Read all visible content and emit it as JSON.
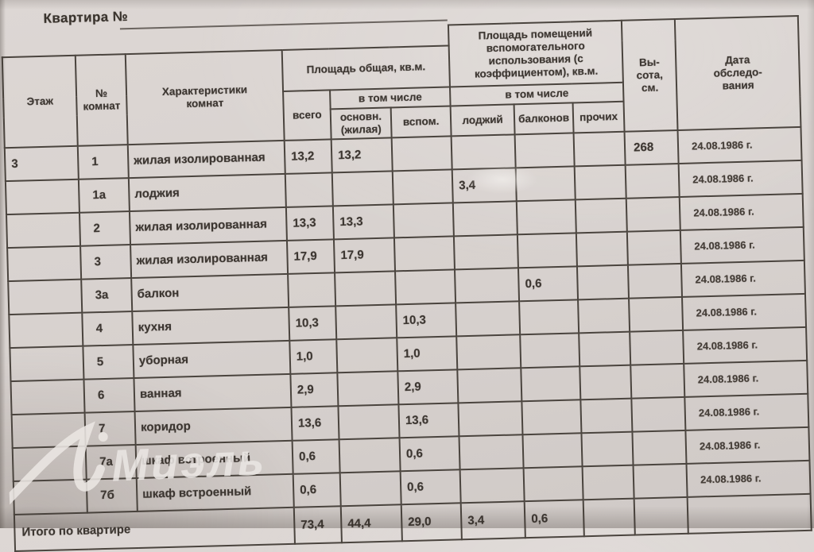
{
  "page_title": "Квартира №",
  "watermark": {
    "text": "Миэль"
  },
  "colors": {
    "paper": "#d7d1ce",
    "table_line": "#4a443e",
    "ink": "#3c3631",
    "watermark": "#eae6e3"
  },
  "table": {
    "headers": {
      "floor": "Этаж",
      "room_no": "№\nкомнат",
      "characteristics": "Характеристики\nкомнат",
      "total_group": "Площадь общая, кв.м.",
      "aux_group": "Площадь помещений\nвспомогательного\nиспользования (с\nкоэффициентом), кв.м.",
      "total": "всего",
      "including": "в том числе",
      "including2": "в том числе",
      "main_living": "основн.\n(жилая)",
      "aux": "вспом.",
      "loggias": "лоджий",
      "balconies": "балконов",
      "other": "прочих",
      "height": "Вы-\nсота,\nсм.",
      "survey_date": "Дата\nобследо-\nвания"
    },
    "rows": [
      {
        "floor": "3",
        "no": "1",
        "type": "жилая изолированная",
        "total": "13,2",
        "main": "13,2",
        "height": "268",
        "date": "24.08.1986 г."
      },
      {
        "no": "1а",
        "type": "лоджия",
        "loggia": "3,4",
        "date": "24.08.1986 г."
      },
      {
        "no": "2",
        "type": "жилая изолированная",
        "total": "13,3",
        "main": "13,3",
        "date": "24.08.1986 г."
      },
      {
        "no": "3",
        "type": "жилая изолированная",
        "total": "17,9",
        "main": "17,9",
        "date": "24.08.1986 г."
      },
      {
        "no": "3а",
        "type": "балкон",
        "balcony": "0,6",
        "date": "24.08.1986 г."
      },
      {
        "no": "4",
        "type": "кухня",
        "total": "10,3",
        "aux": "10,3",
        "date": "24.08.1986 г."
      },
      {
        "no": "5",
        "type": "уборная",
        "total": "1,0",
        "aux": "1,0",
        "date": "24.08.1986 г."
      },
      {
        "no": "6",
        "type": "ванная",
        "total": "2,9",
        "aux": "2,9",
        "date": "24.08.1986 г."
      },
      {
        "no": "7",
        "type": "коридор",
        "total": "13,6",
        "aux": "13,6",
        "date": "24.08.1986 г."
      },
      {
        "no": "7а",
        "type": "шкаф встроенный",
        "total": "0,6",
        "aux": "0,6",
        "date": "24.08.1986 г."
      },
      {
        "no": "7б",
        "type": "шкаф встроенный",
        "total": "0,6",
        "aux": "0,6",
        "date": "24.08.1986 г."
      }
    ],
    "totals": {
      "label": "Итого по квартире",
      "total": "73,4",
      "main": "44,4",
      "aux": "29,0",
      "loggia": "3,4",
      "balcony": "0,6"
    }
  }
}
